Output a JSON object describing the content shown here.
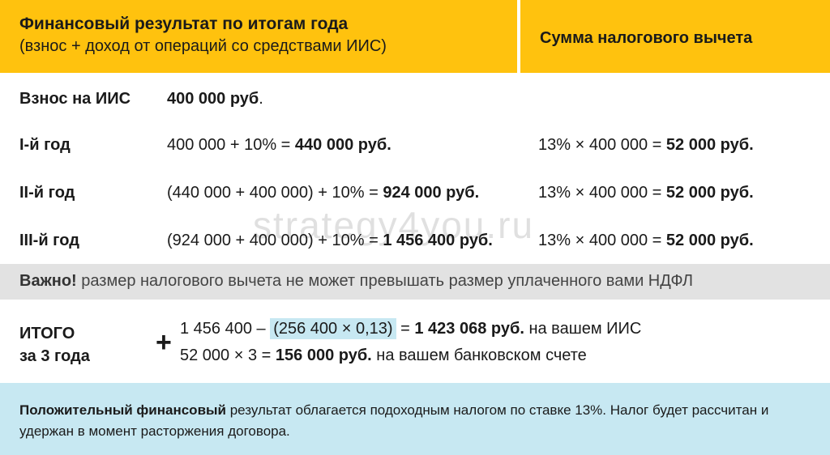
{
  "header": {
    "left_title": "Финансовый результат по итогам года",
    "left_subtitle": "(взнос + доход от операций со средствами ИИС)",
    "right_title": "Сумма налогового вычета"
  },
  "contribution": {
    "label": "Взнос на ИИС",
    "value": "400 000 руб",
    "suffix": "."
  },
  "years": [
    {
      "label": "I-й год",
      "formula_prefix": "400 000 + 10% = ",
      "formula_result": "440 000 руб.",
      "deduction_prefix": "13% × 400 000 = ",
      "deduction_result": "52 000 руб."
    },
    {
      "label": "II-й год",
      "formula_prefix": "(440 000 + 400 000) + 10% = ",
      "formula_result": "924 000 руб.",
      "deduction_prefix": "13% × 400 000 = ",
      "deduction_result": "52 000 руб."
    },
    {
      "label": "III-й год",
      "formula_prefix": "(924 000 + 400 000) + 10% = ",
      "formula_result": "1 456 400 руб.",
      "deduction_prefix": "13% × 400 000 = ",
      "deduction_result": "52 000 руб."
    }
  ],
  "watermark": "strategy4you.ru",
  "important": {
    "bold": "Важно!",
    "text": " размер налогового вычета не может превышать размер уплаченного вами НДФЛ"
  },
  "total": {
    "label_line1": "ИТОГО",
    "label_line2": "за 3 года",
    "plus_sign": "+",
    "line1_prefix": "1 456 400 – ",
    "line1_highlight": "(256 400 × 0,13)",
    "line1_eq": " = ",
    "line1_result": "1 423 068 руб.",
    "line1_suffix": " на вашем ИИС",
    "line2_prefix": "52 000 × 3 = ",
    "line2_result": "156 000 руб.",
    "line2_suffix": " на вашем банковском счете"
  },
  "note": {
    "bold": "Положительный финансовый",
    "text": " результат облагается подоходным налогом по ставке 13%. Налог будет рассчитан и удержан в момент расторжения договора."
  },
  "colors": {
    "header_bg": "#ffc20e",
    "important_bg": "#e2e2e2",
    "note_bg": "#c7e8f2",
    "highlight_bg": "#c7e8f2"
  }
}
